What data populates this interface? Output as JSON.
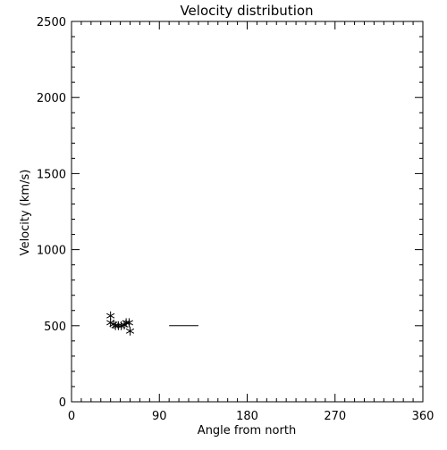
{
  "chart_data": {
    "type": "scatter",
    "title": "Velocity distribution",
    "xlabel": "Angle from north",
    "ylabel": "Velocity (km/s)",
    "xlim": [
      0,
      360
    ],
    "ylim": [
      0,
      2500
    ],
    "xticks": [
      0,
      90,
      180,
      270,
      360
    ],
    "yticks": [
      0,
      500,
      1000,
      1500,
      2000,
      2500
    ],
    "x_minor_ticks_per_major": 9,
    "y_minor_ticks_per_major": 5,
    "grid": false,
    "legend": "none",
    "marker": "asterisk",
    "color": "#000000",
    "series": [
      {
        "type": "scatter",
        "points": [
          {
            "x": 40,
            "y": 565
          },
          {
            "x": 40,
            "y": 520
          },
          {
            "x": 43,
            "y": 510
          },
          {
            "x": 45,
            "y": 500
          },
          {
            "x": 48,
            "y": 500
          },
          {
            "x": 51,
            "y": 500
          },
          {
            "x": 54,
            "y": 505
          },
          {
            "x": 56,
            "y": 520
          },
          {
            "x": 59,
            "y": 520
          },
          {
            "x": 60,
            "y": 465
          }
        ]
      },
      {
        "type": "segment",
        "x": [
          100,
          130
        ],
        "y": [
          500,
          500
        ]
      }
    ]
  }
}
